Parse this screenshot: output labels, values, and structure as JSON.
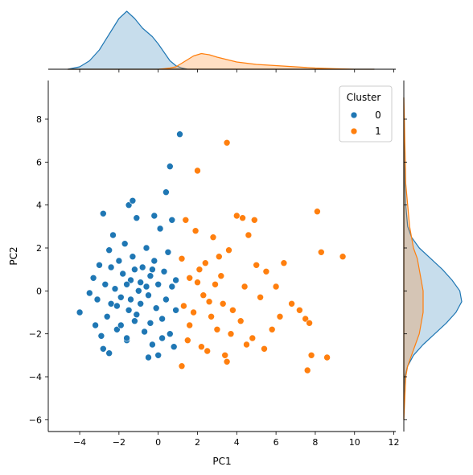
{
  "chart_data": {
    "type": "scatter",
    "title": "",
    "xlabel": "PC1",
    "ylabel": "PC2",
    "xlim": [
      -5.6,
      12.1
    ],
    "ylim": [
      -6.55,
      9.8
    ],
    "x_ticks": [
      -4,
      -2,
      0,
      2,
      4,
      6,
      8,
      10,
      12
    ],
    "y_ticks": [
      -6,
      -4,
      -2,
      0,
      2,
      4,
      6,
      8
    ],
    "grid": false,
    "legend": {
      "title": "Cluster",
      "placement": "top-right"
    },
    "marginals": {
      "top": "kde by cluster (PC1)",
      "right": "kde by cluster (PC2)"
    },
    "series": [
      {
        "name": "0",
        "color": "#1f77b4",
        "points": [
          [
            -4.0,
            -1.0
          ],
          [
            -3.3,
            0.6
          ],
          [
            -3.1,
            -0.4
          ],
          [
            -3.0,
            1.2
          ],
          [
            -2.9,
            -2.1
          ],
          [
            -2.8,
            -2.7
          ],
          [
            -2.8,
            3.6
          ],
          [
            -2.7,
            0.3
          ],
          [
            -2.6,
            -1.2
          ],
          [
            -2.5,
            1.9
          ],
          [
            -2.4,
            -0.6
          ],
          [
            -2.3,
            2.6
          ],
          [
            -2.2,
            0.1
          ],
          [
            -2.1,
            -1.8
          ],
          [
            -2.0,
            1.4
          ],
          [
            -1.9,
            -0.3
          ],
          [
            -1.8,
            0.8
          ],
          [
            -1.7,
            2.2
          ],
          [
            -1.6,
            -2.3
          ],
          [
            -1.5,
            -0.9
          ],
          [
            -1.4,
            0.5
          ],
          [
            -1.3,
            1.6
          ],
          [
            -1.2,
            -1.4
          ],
          [
            -1.1,
            3.4
          ],
          [
            -1.0,
            0.0
          ],
          [
            -0.9,
            -0.6
          ],
          [
            -0.8,
            1.1
          ],
          [
            -0.7,
            -1.9
          ],
          [
            -0.6,
            2.0
          ],
          [
            -0.5,
            -0.2
          ],
          [
            -0.4,
            0.7
          ],
          [
            -0.3,
            -2.5
          ],
          [
            -0.2,
            1.4
          ],
          [
            -0.1,
            -0.8
          ],
          [
            0.0,
            0.3
          ],
          [
            0.1,
            2.9
          ],
          [
            0.2,
            -1.3
          ],
          [
            0.3,
            0.9
          ],
          [
            0.4,
            -0.4
          ],
          [
            0.5,
            1.8
          ],
          [
            0.6,
            -2.0
          ],
          [
            0.7,
            0.2
          ],
          [
            -1.5,
            4.0
          ],
          [
            -1.3,
            4.2
          ],
          [
            -0.2,
            3.5
          ],
          [
            0.4,
            4.6
          ],
          [
            0.6,
            5.8
          ],
          [
            1.1,
            7.3
          ],
          [
            0.7,
            3.3
          ],
          [
            -0.5,
            -3.1
          ],
          [
            0.0,
            -3.0
          ],
          [
            0.8,
            -2.6
          ],
          [
            -2.5,
            -2.9
          ],
          [
            -1.6,
            -2.2
          ],
          [
            0.9,
            -0.9
          ],
          [
            0.9,
            0.5
          ],
          [
            -3.5,
            -0.1
          ],
          [
            -3.2,
            -1.6
          ],
          [
            -2.4,
            1.1
          ],
          [
            -1.9,
            -1.6
          ],
          [
            -1.1,
            -1.1
          ],
          [
            -0.4,
            -1.5
          ],
          [
            0.2,
            -2.2
          ],
          [
            -0.9,
            0.4
          ],
          [
            -1.6,
            0.3
          ],
          [
            -2.1,
            -0.7
          ],
          [
            -1.4,
            -0.4
          ],
          [
            -0.6,
            0.2
          ],
          [
            -1.2,
            1.0
          ],
          [
            -0.3,
            1.0
          ]
        ]
      },
      {
        "name": "1",
        "color": "#ff7f0e",
        "points": [
          [
            1.2,
            -3.5
          ],
          [
            1.5,
            -2.3
          ],
          [
            1.8,
            -1.0
          ],
          [
            2.0,
            0.4
          ],
          [
            2.2,
            -2.6
          ],
          [
            2.4,
            1.3
          ],
          [
            2.6,
            -0.5
          ],
          [
            2.8,
            2.5
          ],
          [
            3.0,
            -1.8
          ],
          [
            3.2,
            0.7
          ],
          [
            3.4,
            -3.0
          ],
          [
            3.6,
            1.9
          ],
          [
            3.8,
            -0.9
          ],
          [
            4.0,
            3.5
          ],
          [
            4.2,
            -1.4
          ],
          [
            4.4,
            0.2
          ],
          [
            4.6,
            2.6
          ],
          [
            4.8,
            -2.2
          ],
          [
            5.0,
            1.2
          ],
          [
            5.2,
            -0.3
          ],
          [
            5.5,
            0.9
          ],
          [
            5.8,
            -1.8
          ],
          [
            6.0,
            0.2
          ],
          [
            6.4,
            1.3
          ],
          [
            6.8,
            -0.6
          ],
          [
            7.2,
            -0.9
          ],
          [
            7.5,
            -1.3
          ],
          [
            7.7,
            -1.5
          ],
          [
            7.6,
            -3.7
          ],
          [
            7.8,
            -3.0
          ],
          [
            8.1,
            3.7
          ],
          [
            8.3,
            1.8
          ],
          [
            8.6,
            -3.1
          ],
          [
            9.4,
            1.6
          ],
          [
            3.5,
            6.9
          ],
          [
            2.0,
            5.6
          ],
          [
            3.5,
            -3.3
          ],
          [
            2.5,
            -2.8
          ],
          [
            1.9,
            2.8
          ],
          [
            1.6,
            0.6
          ],
          [
            2.7,
            -1.2
          ],
          [
            3.1,
            1.6
          ],
          [
            4.5,
            -2.5
          ],
          [
            5.4,
            -2.7
          ],
          [
            1.4,
            3.3
          ],
          [
            1.2,
            1.5
          ],
          [
            2.3,
            -0.2
          ],
          [
            3.3,
            -0.6
          ],
          [
            2.9,
            0.3
          ],
          [
            4.9,
            3.3
          ],
          [
            4.3,
            3.4
          ],
          [
            1.6,
            -1.6
          ],
          [
            2.1,
            1.0
          ],
          [
            3.7,
            -2.0
          ],
          [
            6.2,
            -1.2
          ],
          [
            1.3,
            -0.7
          ]
        ]
      }
    ],
    "kde_top": {
      "x": [
        -4.6,
        -4.0,
        -3.5,
        -3.0,
        -2.5,
        -2.0,
        -1.6,
        -1.2,
        -0.8,
        -0.3,
        0.0,
        0.3,
        0.6,
        0.9,
        1.2,
        1.5,
        1.8,
        2.2,
        2.6,
        3.0,
        3.5,
        4.0,
        5.0,
        6.0,
        7.0,
        8.0,
        9.0,
        10.0,
        11.0
      ],
      "series": [
        {
          "name": "0",
          "color": "#1f77b4",
          "density": [
            0.0,
            0.02,
            0.07,
            0.16,
            0.29,
            0.42,
            0.48,
            0.42,
            0.34,
            0.27,
            0.21,
            0.14,
            0.07,
            0.03,
            0.01,
            0.0,
            0.0,
            0.0,
            0.0,
            0.0,
            0.0,
            0.0,
            0.0,
            0.0,
            0.0,
            0.0,
            0.0,
            0.0,
            0.0
          ]
        },
        {
          "name": "1",
          "color": "#ff7f0e",
          "density": [
            0.0,
            0.0,
            0.0,
            0.0,
            0.0,
            0.0,
            0.0,
            0.0,
            0.0,
            0.0,
            0.0,
            0.005,
            0.01,
            0.02,
            0.05,
            0.08,
            0.11,
            0.13,
            0.12,
            0.1,
            0.08,
            0.06,
            0.04,
            0.03,
            0.02,
            0.01,
            0.005,
            0.0,
            0.0
          ]
        }
      ]
    },
    "kde_right": {
      "y": [
        -6.0,
        -5.0,
        -4.0,
        -3.5,
        -3.0,
        -2.5,
        -2.0,
        -1.5,
        -1.0,
        -0.5,
        0.0,
        0.5,
        1.0,
        1.5,
        2.0,
        2.5,
        3.0,
        4.0,
        5.0,
        6.0,
        7.0,
        8.0,
        9.0
      ],
      "series": [
        {
          "name": "0",
          "color": "#1f77b4",
          "density": [
            0.0,
            0.0,
            0.005,
            0.02,
            0.05,
            0.1,
            0.16,
            0.22,
            0.27,
            0.3,
            0.29,
            0.25,
            0.2,
            0.14,
            0.08,
            0.04,
            0.02,
            0.01,
            0.005,
            0.003,
            0.002,
            0.0,
            0.0
          ]
        },
        {
          "name": "1",
          "color": "#ff7f0e",
          "density": [
            0.0,
            0.005,
            0.01,
            0.02,
            0.04,
            0.06,
            0.08,
            0.09,
            0.1,
            0.1,
            0.1,
            0.09,
            0.08,
            0.07,
            0.05,
            0.04,
            0.03,
            0.02,
            0.01,
            0.008,
            0.005,
            0.003,
            0.0
          ]
        }
      ]
    }
  }
}
